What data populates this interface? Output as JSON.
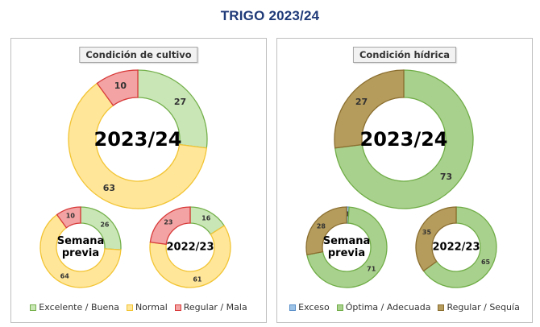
{
  "page_title": "TRIGO 2023/24",
  "colors": {
    "excelente": "#c9e6b7",
    "excelente_stroke": "#74b04b",
    "normal": "#ffe699",
    "normal_stroke": "#f2c434",
    "regular_mala": "#f3a3a3",
    "regular_mala_stroke": "#d83a3a",
    "exceso": "#9dc3e6",
    "exceso_stroke": "#5a8fc9",
    "optima": "#a9d18e",
    "optima_stroke": "#70ad47",
    "sequia": "#b59b5c",
    "sequia_stroke": "#8a6e2f"
  },
  "chart_data": [
    {
      "type": "pie",
      "variant": "donut",
      "title": "Condición de cultivo",
      "legend": [
        "Excelente / Buena",
        "Normal",
        "Regular / Mala"
      ],
      "legend_colors": [
        "excelente",
        "normal",
        "regular_mala"
      ],
      "donuts": [
        {
          "center_label": "2023/24",
          "values": [
            27,
            63,
            10
          ],
          "colors": [
            "excelente",
            "normal",
            "regular_mala"
          ]
        },
        {
          "center_label": "Semana previa",
          "values": [
            26,
            64,
            10
          ],
          "colors": [
            "excelente",
            "normal",
            "regular_mala"
          ]
        },
        {
          "center_label": "2022/23",
          "values": [
            16,
            61,
            23
          ],
          "colors": [
            "excelente",
            "normal",
            "regular_mala"
          ]
        }
      ]
    },
    {
      "type": "pie",
      "variant": "donut",
      "title": "Condición hídrica",
      "legend": [
        "Exceso",
        "Óptima / Adecuada",
        "Regular / Sequía"
      ],
      "legend_colors": [
        "exceso",
        "optima",
        "sequia"
      ],
      "donuts": [
        {
          "center_label": "2023/24",
          "values": [
            0,
            73,
            27
          ],
          "colors": [
            "exceso",
            "optima",
            "sequia"
          ]
        },
        {
          "center_label": "Semana previa",
          "values": [
            1,
            71,
            28
          ],
          "colors": [
            "exceso",
            "optima",
            "sequia"
          ]
        },
        {
          "center_label": "2022/23",
          "values": [
            0,
            65,
            35
          ],
          "colors": [
            "exceso",
            "optima",
            "sequia"
          ]
        }
      ]
    }
  ]
}
